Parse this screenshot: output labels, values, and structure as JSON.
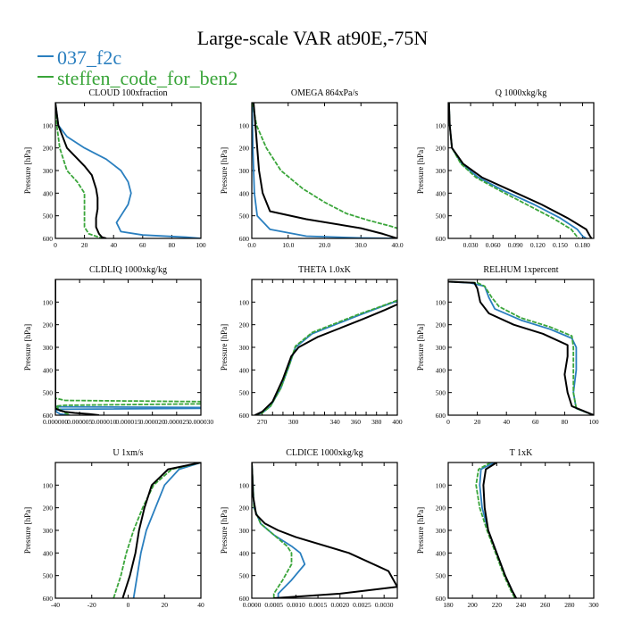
{
  "figure": {
    "title": "Large-scale VAR at90E,-75N",
    "legend": [
      {
        "label": "037_f2c",
        "color": "#2a7fbf"
      },
      {
        "label": "steffen_code_for_ben2",
        "color": "#3aa53a"
      }
    ],
    "ref_color": "#000000"
  },
  "chart_data": [
    {
      "type": "line",
      "title": "CLOUD  100xfraction",
      "ylabel": "Pressure [hPa]",
      "xlim": [
        0,
        100
      ],
      "ylim": [
        600,
        0
      ],
      "xticks": [
        "0",
        "20",
        "40",
        "60",
        "80",
        "100"
      ],
      "xtick_values": [
        0,
        20,
        40,
        60,
        80,
        100
      ],
      "yticks": [
        "100",
        "200",
        "300",
        "400",
        "500",
        "600"
      ],
      "ytick_values": [
        100,
        200,
        300,
        400,
        500,
        600
      ],
      "series": [
        {
          "name": "037_f2c",
          "x": [
            0,
            2,
            8,
            20,
            35,
            45,
            50,
            52,
            50,
            45,
            42,
            45,
            60,
            90,
            100
          ],
          "y": [
            0,
            100,
            150,
            200,
            250,
            300,
            350,
            400,
            450,
            500,
            530,
            570,
            585,
            595,
            600
          ]
        },
        {
          "name": "steffen_code_for_ben2",
          "x": [
            0,
            1,
            3,
            8,
            15,
            20,
            20,
            20,
            20,
            23,
            30,
            35
          ],
          "y": [
            0,
            100,
            200,
            300,
            350,
            400,
            450,
            500,
            550,
            580,
            595,
            600
          ]
        },
        {
          "name": "",
          "x": [
            0,
            2,
            8,
            20,
            25,
            28,
            29,
            29,
            28,
            28,
            30,
            32,
            35
          ],
          "y": [
            0,
            100,
            200,
            280,
            320,
            380,
            420,
            470,
            510,
            550,
            580,
            595,
            600
          ]
        }
      ]
    },
    {
      "type": "line",
      "title": "OMEGA  864xPa/s",
      "ylabel": "Pressure [hPa]",
      "xlim": [
        0,
        40
      ],
      "ylim": [
        600,
        0
      ],
      "xticks": [
        "0.0",
        "10.0",
        "20.0",
        "30.0",
        "40.0"
      ],
      "xtick_values": [
        0,
        10,
        20,
        30,
        40
      ],
      "yticks": [
        "100",
        "200",
        "300",
        "400",
        "500",
        "600"
      ],
      "ytick_values": [
        100,
        200,
        300,
        400,
        500,
        600
      ],
      "series": [
        {
          "name": "037_f2c",
          "x": [
            0.1,
            0.3,
            0.7,
            1.5,
            5,
            15,
            30,
            40
          ],
          "y": [
            0,
            200,
            400,
            500,
            560,
            590,
            598,
            600
          ]
        },
        {
          "name": "steffen_code_for_ben2",
          "x": [
            0.2,
            1.3,
            4,
            8,
            14,
            20,
            26,
            32,
            38,
            40
          ],
          "y": [
            0,
            100,
            200,
            300,
            380,
            440,
            490,
            520,
            545,
            555
          ]
        },
        {
          "name": "",
          "x": [
            0.5,
            1,
            1.5,
            2,
            3,
            5,
            15,
            30,
            36,
            40
          ],
          "y": [
            0,
            100,
            200,
            300,
            400,
            480,
            515,
            555,
            580,
            600
          ]
        }
      ]
    },
    {
      "type": "line",
      "title": "Q  1000xkg/kg",
      "ylabel": "Pressure [hPa]",
      "xlim": [
        0,
        0.195
      ],
      "ylim": [
        600,
        0
      ],
      "xticks": [
        "0.030",
        "0.060",
        "0.090",
        "0.120",
        "0.150",
        "0.180"
      ],
      "xtick_values": [
        0.03,
        0.06,
        0.09,
        0.12,
        0.15,
        0.18
      ],
      "yticks": [
        "100",
        "200",
        "300",
        "400",
        "500",
        "600"
      ],
      "ytick_values": [
        100,
        200,
        300,
        400,
        500,
        600
      ],
      "series": [
        {
          "name": "037_f2c",
          "x": [
            0.001,
            0.002,
            0.005,
            0.018,
            0.04,
            0.075,
            0.115,
            0.15,
            0.173,
            0.18,
            0.185
          ],
          "y": [
            0,
            100,
            200,
            270,
            330,
            390,
            450,
            510,
            560,
            590,
            600
          ]
        },
        {
          "name": "steffen_code_for_ben2",
          "x": [
            0.001,
            0.002,
            0.005,
            0.017,
            0.037,
            0.07,
            0.105,
            0.14,
            0.165,
            0.172,
            0.175
          ],
          "y": [
            0,
            100,
            200,
            270,
            330,
            390,
            450,
            510,
            560,
            590,
            600
          ]
        },
        {
          "name": "",
          "x": [
            0.001,
            0.002,
            0.005,
            0.02,
            0.045,
            0.085,
            0.125,
            0.16,
            0.185,
            0.19,
            0.192
          ],
          "y": [
            0,
            100,
            200,
            270,
            330,
            390,
            450,
            510,
            560,
            590,
            600
          ]
        }
      ]
    },
    {
      "type": "line",
      "title": "CLDLIQ  1000xkg/kg",
      "ylabel": "Pressure [hPa]",
      "xlim": [
        0,
        3e-05
      ],
      "ylim": [
        600,
        0
      ],
      "xticks": [
        "0.000000",
        "0.000005",
        "0.000010",
        "0.000015",
        "0.000020",
        "0.000025",
        "0.000030"
      ],
      "xtick_values": [
        0,
        5e-06,
        1e-05,
        1.5e-05,
        2e-05,
        2.5e-05,
        3e-05
      ],
      "yticks": [
        "100",
        "200",
        "300",
        "400",
        "500",
        "600"
      ],
      "ytick_values": [
        100,
        200,
        300,
        400,
        500,
        600
      ],
      "series": [
        {
          "name": "037_f2c",
          "x": [
            0,
            0,
            1e-06,
            3e-05,
            3e-05,
            1e-06,
            0,
            2e-07,
            1e-06,
            3e-06
          ],
          "y": [
            0,
            560,
            563,
            566,
            570,
            574,
            578,
            585,
            595,
            600
          ]
        },
        {
          "name": "steffen_code_for_ben2",
          "x": [
            0,
            0,
            2e-06,
            3e-05,
            3e-05,
            2e-06,
            0,
            1e-06,
            2e-06,
            3e-06
          ],
          "y": [
            0,
            525,
            535,
            540,
            550,
            556,
            560,
            575,
            590,
            600
          ]
        },
        {
          "name": "",
          "x": [
            0,
            0,
            1e-06,
            2e-06,
            4e-06,
            7e-06,
            9e-06
          ],
          "y": [
            0,
            570,
            580,
            585,
            590,
            595,
            600
          ]
        }
      ]
    },
    {
      "type": "line",
      "title": "THETA  1.0xK",
      "ylabel": "Pressure [hPa]",
      "xlim": [
        260,
        400
      ],
      "ylim": [
        600,
        0
      ],
      "xticks": [
        "270",
        "280",
        "290",
        "300",
        "310",
        "320",
        "330",
        "340",
        "350",
        "360",
        "370",
        "380",
        "390",
        "400"
      ],
      "xtick_values": [
        270,
        280,
        290,
        300,
        310,
        320,
        330,
        340,
        350,
        360,
        370,
        380,
        390,
        400
      ],
      "xtick_labels_shown": [
        "270",
        "300",
        "340",
        "360",
        "380",
        "400"
      ],
      "yticks": [
        "100",
        "200",
        "300",
        "400",
        "500",
        "600"
      ],
      "ytick_values": [
        100,
        200,
        300,
        400,
        500,
        600
      ],
      "series": [
        {
          "name": "037_f2c",
          "x": [
            263,
            270,
            278,
            288,
            296,
            302,
            318,
            340,
            362,
            385,
            400
          ],
          "y": [
            600,
            590,
            560,
            480,
            380,
            300,
            240,
            200,
            160,
            120,
            95
          ]
        },
        {
          "name": "steffen_code_for_ben2",
          "x": [
            263,
            270,
            278,
            288,
            296,
            302,
            318,
            340,
            362,
            385,
            400
          ],
          "y": [
            600,
            590,
            560,
            480,
            380,
            295,
            235,
            195,
            155,
            118,
            92
          ]
        },
        {
          "name": "",
          "x": [
            263,
            270,
            280,
            290,
            298,
            305,
            323,
            345,
            367,
            388,
            400
          ],
          "y": [
            600,
            585,
            540,
            440,
            340,
            300,
            255,
            215,
            175,
            135,
            110
          ]
        }
      ]
    },
    {
      "type": "line",
      "title": "RELHUM  1xpercent",
      "ylabel": "Pressure [hPa]",
      "xlim": [
        0,
        100
      ],
      "ylim": [
        600,
        0
      ],
      "xticks": [
        "0",
        "20",
        "40",
        "60",
        "80",
        "100"
      ],
      "xtick_values": [
        0,
        20,
        40,
        60,
        80,
        100
      ],
      "yticks": [
        "100",
        "200",
        "300",
        "400",
        "500",
        "600"
      ],
      "ytick_values": [
        100,
        200,
        300,
        400,
        500,
        600
      ],
      "series": [
        {
          "name": "037_f2c",
          "x": [
            0,
            15,
            25,
            28,
            32,
            50,
            70,
            85,
            88,
            88,
            86,
            88,
            100
          ],
          "y": [
            10,
            15,
            30,
            80,
            130,
            180,
            220,
            260,
            300,
            400,
            500,
            570,
            600
          ]
        },
        {
          "name": "steffen_code_for_ben2",
          "x": [
            0,
            20,
            25,
            30,
            35,
            50,
            70,
            85,
            86,
            86,
            86,
            88,
            100
          ],
          "y": [
            10,
            15,
            30,
            80,
            120,
            170,
            210,
            250,
            300,
            400,
            500,
            570,
            600
          ]
        },
        {
          "name": "",
          "x": [
            0,
            18,
            20,
            22,
            28,
            45,
            65,
            82,
            82,
            80,
            82,
            85,
            100
          ],
          "y": [
            10,
            15,
            40,
            100,
            150,
            200,
            240,
            290,
            340,
            420,
            500,
            560,
            600
          ]
        }
      ]
    },
    {
      "type": "line",
      "title": "U  1xm/s",
      "ylabel": "Pressure [hPa]",
      "xlim": [
        -40,
        40
      ],
      "ylim": [
        600,
        0
      ],
      "xticks": [
        "-40",
        "-20",
        "0",
        "20",
        "40"
      ],
      "xtick_values": [
        -40,
        -20,
        0,
        20,
        40
      ],
      "yticks": [
        "100",
        "200",
        "300",
        "400",
        "500",
        "600"
      ],
      "ytick_values": [
        100,
        200,
        300,
        400,
        500,
        600
      ],
      "series": [
        {
          "name": "037_f2c",
          "x": [
            3,
            5,
            7,
            10,
            15,
            20,
            28,
            40
          ],
          "y": [
            600,
            500,
            400,
            300,
            200,
            100,
            30,
            0
          ]
        },
        {
          "name": "steffen_code_for_ben2",
          "x": [
            -8,
            -4,
            -1,
            3,
            8,
            14,
            24,
            40
          ],
          "y": [
            600,
            500,
            400,
            300,
            200,
            100,
            30,
            0
          ]
        },
        {
          "name": "",
          "x": [
            -3,
            1,
            4,
            6,
            9,
            13,
            22,
            40
          ],
          "y": [
            600,
            500,
            400,
            300,
            200,
            100,
            30,
            0
          ]
        }
      ]
    },
    {
      "type": "line",
      "title": "CLDICE  1000xkg/kg",
      "ylabel": "Pressure [hPa]",
      "xlim": [
        0,
        0.0033
      ],
      "ylim": [
        600,
        0
      ],
      "xticks": [
        "0.0000",
        "0.0005",
        "0.0010",
        "0.0015",
        "0.0020",
        "0.0025",
        "0.0030"
      ],
      "xtick_values": [
        0,
        0.0005,
        0.001,
        0.0015,
        0.002,
        0.0025,
        0.003
      ],
      "yticks": [
        "100",
        "200",
        "300",
        "400",
        "500",
        "600"
      ],
      "ytick_values": [
        100,
        200,
        300,
        400,
        500,
        600
      ],
      "series": [
        {
          "name": "037_f2c",
          "x": [
            0,
            5e-05,
            0.0002,
            0.0005,
            0.0009,
            0.0011,
            0.0012,
            0.0009,
            0.0006,
            0.0006
          ],
          "y": [
            0,
            200,
            270,
            320,
            370,
            400,
            450,
            520,
            580,
            600
          ]
        },
        {
          "name": "steffen_code_for_ben2",
          "x": [
            0,
            5e-05,
            0.0002,
            0.0005,
            0.0008,
            0.0009,
            0.0009,
            0.0007,
            0.0005,
            0.0005
          ],
          "y": [
            0,
            200,
            270,
            320,
            370,
            400,
            450,
            520,
            580,
            600
          ]
        },
        {
          "name": "",
          "x": [
            0,
            3e-05,
            0.0001,
            0.0003,
            0.0006,
            0.001,
            0.0022,
            0.0031,
            0.0033,
            0.002,
            0.0005
          ],
          "y": [
            0,
            150,
            230,
            270,
            300,
            330,
            400,
            480,
            550,
            580,
            600
          ]
        }
      ]
    },
    {
      "type": "line",
      "title": "T  1xK",
      "ylabel": "Pressure [hPa]",
      "xlim": [
        180,
        300
      ],
      "ylim": [
        600,
        0
      ],
      "xticks": [
        "180",
        "200",
        "220",
        "240",
        "260",
        "280",
        "300"
      ],
      "xtick_values": [
        180,
        200,
        220,
        240,
        260,
        280,
        300
      ],
      "yticks": [
        "100",
        "200",
        "300",
        "400",
        "500",
        "600"
      ],
      "ytick_values": [
        100,
        200,
        300,
        400,
        500,
        600
      ],
      "series": [
        {
          "name": "037_f2c",
          "x": [
            218,
            207,
            206,
            208,
            213,
            220,
            227,
            233,
            236
          ],
          "y": [
            0,
            30,
            100,
            200,
            300,
            400,
            500,
            570,
            600
          ]
        },
        {
          "name": "steffen_code_for_ben2",
          "x": [
            215,
            205,
            203,
            206,
            212,
            219,
            226,
            232,
            235
          ],
          "y": [
            0,
            30,
            100,
            200,
            300,
            400,
            500,
            570,
            600
          ]
        },
        {
          "name": "",
          "x": [
            220,
            211,
            209,
            210,
            213,
            220,
            227,
            233,
            236
          ],
          "y": [
            0,
            30,
            100,
            200,
            300,
            400,
            500,
            570,
            600
          ]
        }
      ]
    }
  ]
}
